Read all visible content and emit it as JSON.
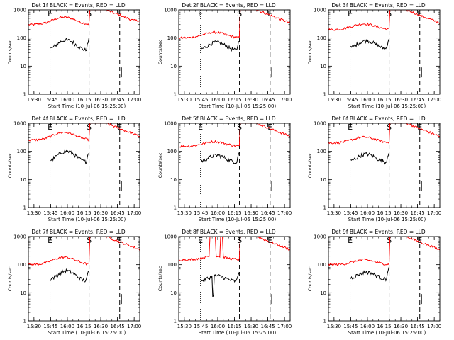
{
  "colors": {
    "events": "#000000",
    "lld": "#ff0000",
    "axes": "#000000",
    "background": "#ffffff"
  },
  "shared": {
    "ylabel": "Counts/sec",
    "xlabel": "Start Time (10-Jul-06 15:25:00)",
    "x_tick_labels": [
      "15:30",
      "15:45",
      "16:00",
      "16:15",
      "16:30",
      "16:45",
      "17:00"
    ],
    "x_tick_minutes": [
      5,
      20,
      35,
      50,
      65,
      80,
      95
    ],
    "y_tick_labels": [
      "1",
      "10",
      "100",
      "1000"
    ],
    "y_tick_values": [
      1,
      10,
      100,
      1000
    ],
    "xlim_minutes_after_start": [
      0,
      100
    ],
    "ylim": [
      1,
      1000
    ],
    "y_scale": "log",
    "markers": [
      {
        "label": "E",
        "minute": 19.5,
        "style": "dotted"
      },
      {
        "label": "S",
        "minute": 54.5,
        "style": "dashed"
      },
      {
        "label": "E",
        "minute": 82,
        "style": "dashed"
      }
    ]
  },
  "chart_data": [
    {
      "type": "line",
      "title": "Det 1f BLACK = Events, RED = LLD",
      "lld_base": 300,
      "ev_base": 35,
      "bump": 2.4,
      "flare": 1000,
      "spike": 0,
      "ev_spike": 0,
      "series": [
        {
          "name": "Events",
          "color": "#000000"
        },
        {
          "name": "LLD",
          "color": "#ff0000"
        }
      ]
    },
    {
      "type": "line",
      "title": "Det 2f BLACK = Events, RED = LLD",
      "lld_base": 100,
      "ev_base": 35,
      "bump": 2.0,
      "flare": 1000,
      "spike": 0,
      "ev_spike": 0,
      "series": [
        {
          "name": "Events",
          "color": "#000000"
        },
        {
          "name": "LLD",
          "color": "#ff0000"
        }
      ]
    },
    {
      "type": "line",
      "title": "Det 3f BLACK = Events, RED = LLD",
      "lld_base": 200,
      "ev_base": 40,
      "bump": 2.0,
      "flare": 1000,
      "spike": 0,
      "ev_spike": 0,
      "series": [
        {
          "name": "Events",
          "color": "#000000"
        },
        {
          "name": "LLD",
          "color": "#ff0000"
        }
      ]
    },
    {
      "type": "line",
      "title": "Det 4f BLACK = Events, RED = LLD",
      "lld_base": 250,
      "ev_base": 40,
      "bump": 2.5,
      "flare": 1000,
      "spike": 0,
      "ev_spike": 0,
      "series": [
        {
          "name": "Events",
          "color": "#000000"
        },
        {
          "name": "LLD",
          "color": "#ff0000"
        }
      ]
    },
    {
      "type": "line",
      "title": "Det 5f BLACK = Events, RED = LLD",
      "lld_base": 150,
      "ev_base": 40,
      "bump": 1.8,
      "flare": 1000,
      "spike": 0,
      "ev_spike": 0,
      "series": [
        {
          "name": "Events",
          "color": "#000000"
        },
        {
          "name": "LLD",
          "color": "#ff0000"
        }
      ]
    },
    {
      "type": "line",
      "title": "Det 6f BLACK = Events, RED = LLD",
      "lld_base": 200,
      "ev_base": 40,
      "bump": 2.0,
      "flare": 1000,
      "spike": 0,
      "ev_spike": 0,
      "series": [
        {
          "name": "Events",
          "color": "#000000"
        },
        {
          "name": "LLD",
          "color": "#ff0000"
        }
      ]
    },
    {
      "type": "line",
      "title": "Det 7f BLACK = Events, RED = LLD",
      "lld_base": 100,
      "ev_base": 25,
      "bump": 2.4,
      "flare": 1000,
      "spike": 0,
      "ev_spike": 0,
      "series": [
        {
          "name": "Events",
          "color": "#000000"
        },
        {
          "name": "LLD",
          "color": "#ff0000"
        }
      ]
    },
    {
      "type": "line",
      "title": "Det 8f BLACK = Events, RED = LLD",
      "lld_base": 150,
      "ev_base": 25,
      "bump": 1.6,
      "flare": 1000,
      "spike": 1,
      "ev_spike": 1,
      "series": [
        {
          "name": "Events",
          "color": "#000000"
        },
        {
          "name": "LLD",
          "color": "#ff0000"
        }
      ]
    },
    {
      "type": "line",
      "title": "Det 9f BLACK = Events, RED = LLD",
      "lld_base": 100,
      "ev_base": 30,
      "bump": 1.8,
      "flare": 1000,
      "spike": 0,
      "ev_spike": 0,
      "series": [
        {
          "name": "Events",
          "color": "#000000"
        },
        {
          "name": "LLD",
          "color": "#ff0000"
        }
      ]
    }
  ]
}
